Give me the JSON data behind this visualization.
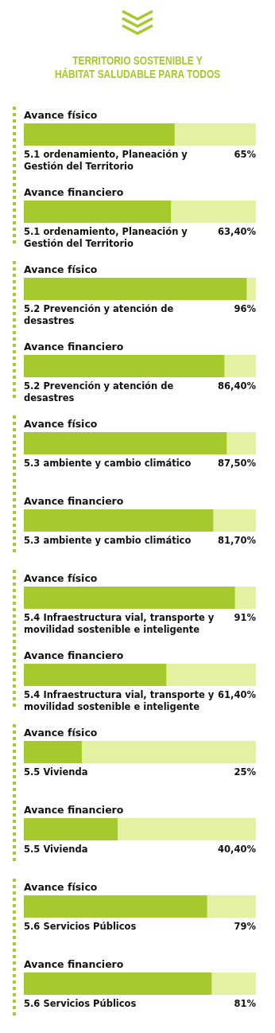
{
  "chart_data": {
    "type": "bar",
    "orientation": "horizontal",
    "title": "TERRITORIO SOSTENIBLE Y\nHÁBITAT SALUDABLE PARA TODOS",
    "categories": [
      null,
      null,
      null,
      null,
      null,
      null,
      null,
      null,
      null,
      null,
      null,
      null
    ],
    "values": [
      65,
      63.4,
      96,
      86.4,
      87.5,
      81.7,
      91,
      61.4,
      25,
      40.4,
      79,
      81
    ],
    "value_labels": [
      "65%",
      "63,40%",
      "96%",
      "86,40%",
      "87,50%",
      "81,70%",
      "91%",
      "61,40%",
      "25%",
      "40,40%",
      "79%",
      "81%"
    ],
    "annotations": [
      "Avance físico",
      "5.1 ordenamiento, Planeación y Gestión del Territorio",
      "Avance financiero",
      "5.1 ordenamiento, Planeación y Gestión del Territorio",
      "Avance físico",
      "5.2 Prevención y atención de desastres",
      "Avance financiero",
      "5.2 Prevención y atención de desastres",
      "Avance físico",
      "5.3 ambiente y cambio climático",
      "Avance financiero",
      "5.3 ambiente y cambio climático",
      "Avance físico",
      "5.4 Infraestructura vial, transporte y movilidad sostenible e inteligente",
      "Avance financiero",
      "5.4 Infraestructura vial, transporte y movilidad sostenible e inteligente",
      "Avance físico",
      "5.5 Vivienda",
      "Avance financiero",
      "5.5 Vivienda",
      "Avance físico",
      "5.6 Servicios Públicos",
      "Avance financiero",
      "5.6 Servicios Públicos"
    ],
    "color": "#a6c92e",
    "xlim": [
      0,
      100
    ],
    "tick_labels": false
  }
}
